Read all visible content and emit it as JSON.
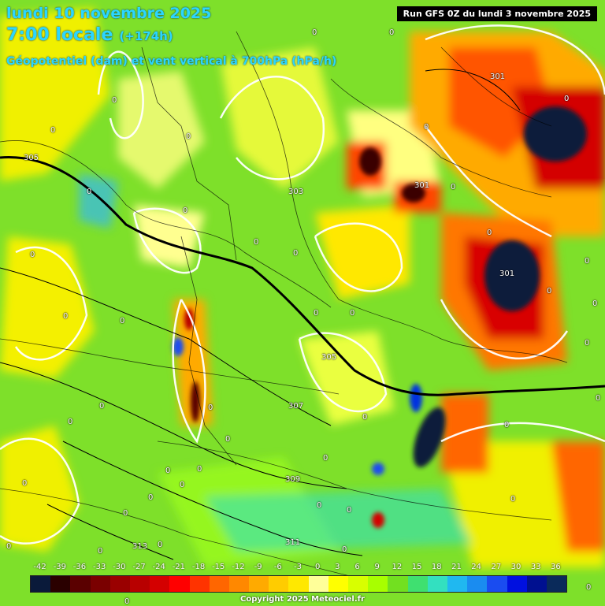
{
  "header": {
    "date": "lundi 10 novembre 2025",
    "time": "7:00 locale",
    "lead": "(+174h)",
    "field": "Géopotentiel (dam) et vent vertical à 700hPa (hPa/h)",
    "run": "Run GFS 0Z du lundi 3 novembre 2025"
  },
  "scale": {
    "ticks": [
      "-42",
      "-39",
      "-36",
      "-33",
      "-30",
      "-27",
      "-24",
      "-21",
      "-18",
      "-15",
      "-12",
      "-9",
      "-6",
      "-3",
      "0",
      "3",
      "6",
      "9",
      "12",
      "15",
      "18",
      "21",
      "24",
      "27",
      "30",
      "33",
      "36"
    ],
    "colors": [
      "#0a1a3a",
      "#2a0000",
      "#5a0000",
      "#7a0000",
      "#9a0000",
      "#b80000",
      "#d40000",
      "#ff0000",
      "#ff3300",
      "#ff6600",
      "#ff8800",
      "#ffaa00",
      "#ffcc00",
      "#ffe800",
      "#ffff99",
      "#ffff00",
      "#d8ff00",
      "#a8ff00",
      "#72e020",
      "#3fe070",
      "#33e0c0",
      "#20b8f0",
      "#1a8cf0",
      "#1a4cf0",
      "#0010e0",
      "#001090",
      "#0a2a5a"
    ]
  },
  "contours": [
    {
      "label": "305"
    },
    {
      "label": "301"
    },
    {
      "label": "301"
    },
    {
      "label": "301"
    },
    {
      "label": "303"
    },
    {
      "label": "305"
    },
    {
      "label": "307"
    },
    {
      "label": "309"
    },
    {
      "label": "311"
    },
    {
      "label": "313"
    }
  ],
  "zero_label": "0",
  "copyright": "Copyright 2025 Meteociel.fr"
}
